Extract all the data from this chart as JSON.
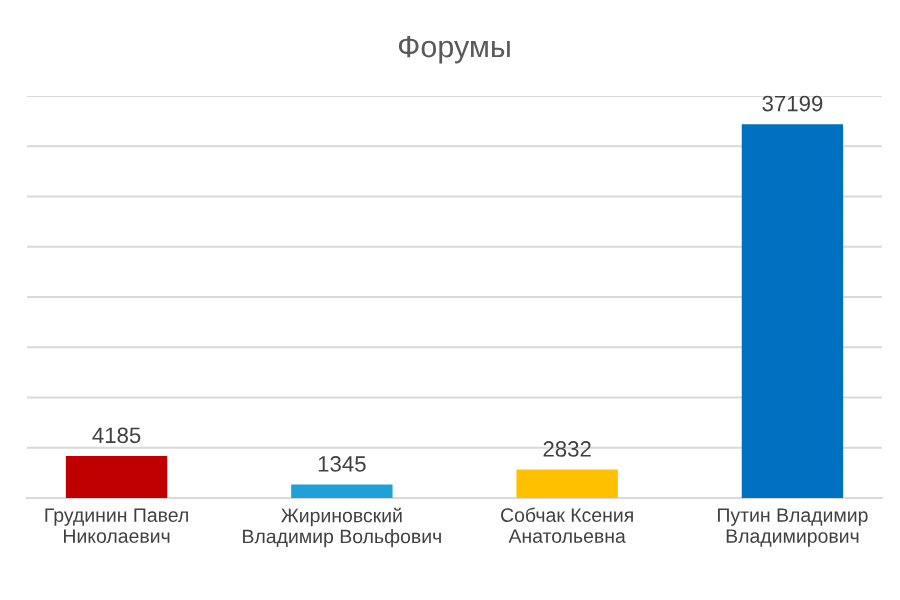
{
  "chart_data": {
    "type": "bar",
    "title": "Форумы",
    "categories": [
      "Грудинин Павел\nНиколаевич",
      "Жириновский\nВладимир Вольфович",
      "Собчак Ксения\nАнатольевна",
      "Путин Владимир\nВладимирович"
    ],
    "values": [
      4185,
      1345,
      2832,
      37199
    ],
    "colors": [
      "#c00000",
      "#1fa0d8",
      "#ffc000",
      "#0070c0"
    ],
    "ylim": [
      0,
      40000
    ],
    "yticks": [
      {
        "value": 0,
        "label": null
      },
      {
        "value": 5000,
        "label": null
      },
      {
        "value": 10000,
        "label": null
      },
      {
        "value": 15000,
        "label": null
      },
      {
        "value": 20000,
        "label": null
      },
      {
        "value": 25000,
        "label": null
      },
      {
        "value": 30000,
        "label": null
      },
      {
        "value": 35000,
        "label": null
      },
      {
        "value": 40000,
        "label": null
      }
    ],
    "grid": "y",
    "tick_labels": "x",
    "data_labels": true
  }
}
